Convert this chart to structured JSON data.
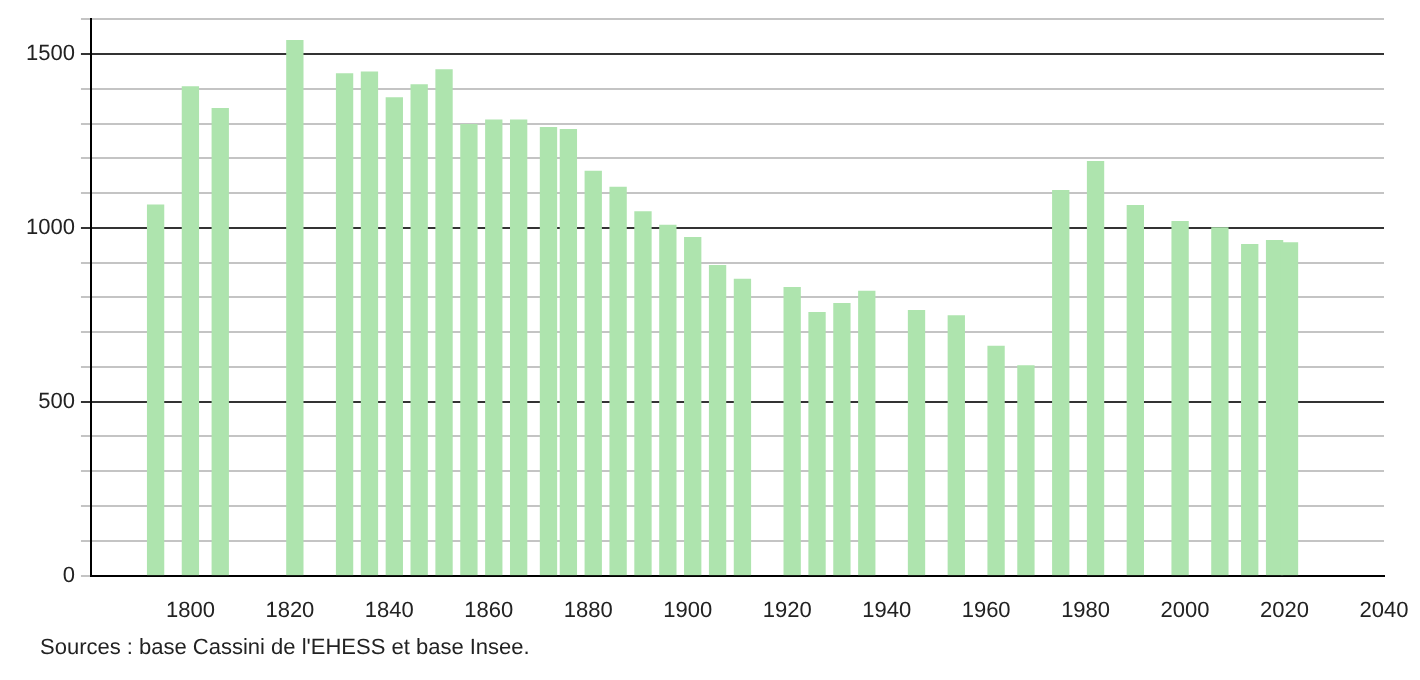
{
  "chart_data": {
    "type": "bar",
    "x": [
      1793,
      1800,
      1806,
      1821,
      1831,
      1836,
      1841,
      1846,
      1851,
      1856,
      1861,
      1866,
      1872,
      1876,
      1881,
      1886,
      1891,
      1896,
      1901,
      1906,
      1911,
      1921,
      1926,
      1931,
      1936,
      1946,
      1954,
      1962,
      1968,
      1975,
      1982,
      1990,
      1999,
      2007,
      2013,
      2018,
      2021
    ],
    "values": [
      1065,
      1405,
      1343,
      1538,
      1443,
      1448,
      1374,
      1411,
      1454,
      1297,
      1310,
      1310,
      1288,
      1282,
      1162,
      1116,
      1046,
      1007,
      972,
      891,
      852,
      828,
      756,
      782,
      817,
      762,
      747,
      659,
      603,
      1107,
      1190,
      1064,
      1018,
      1000,
      952,
      963,
      957
    ],
    "color": "#aee4ae",
    "xlim": [
      1780,
      2040
    ],
    "xticks": [
      1800,
      1820,
      1840,
      1860,
      1880,
      1900,
      1920,
      1940,
      1960,
      1980,
      2000,
      2020,
      2040
    ],
    "ylim": [
      0,
      1600
    ],
    "yticks": [
      0,
      {
        "value": 100,
        "label": null
      },
      {
        "value": 200,
        "label": null
      },
      {
        "value": 300,
        "label": null
      },
      {
        "value": 400,
        "label": null
      },
      500,
      {
        "value": 600,
        "label": null
      },
      {
        "value": 700,
        "label": null
      },
      {
        "value": 800,
        "label": null
      },
      {
        "value": 900,
        "label": null
      },
      1000,
      {
        "value": 1100,
        "label": null
      },
      {
        "value": 1200,
        "label": null
      },
      {
        "value": 1300,
        "label": null
      },
      {
        "value": 1400,
        "label": null
      },
      1500,
      {
        "value": 1600,
        "label": null
      }
    ],
    "grid": "y",
    "legend": false,
    "annotations": [
      "Sources : base Cassini de l'EHESS et base Insee."
    ]
  }
}
